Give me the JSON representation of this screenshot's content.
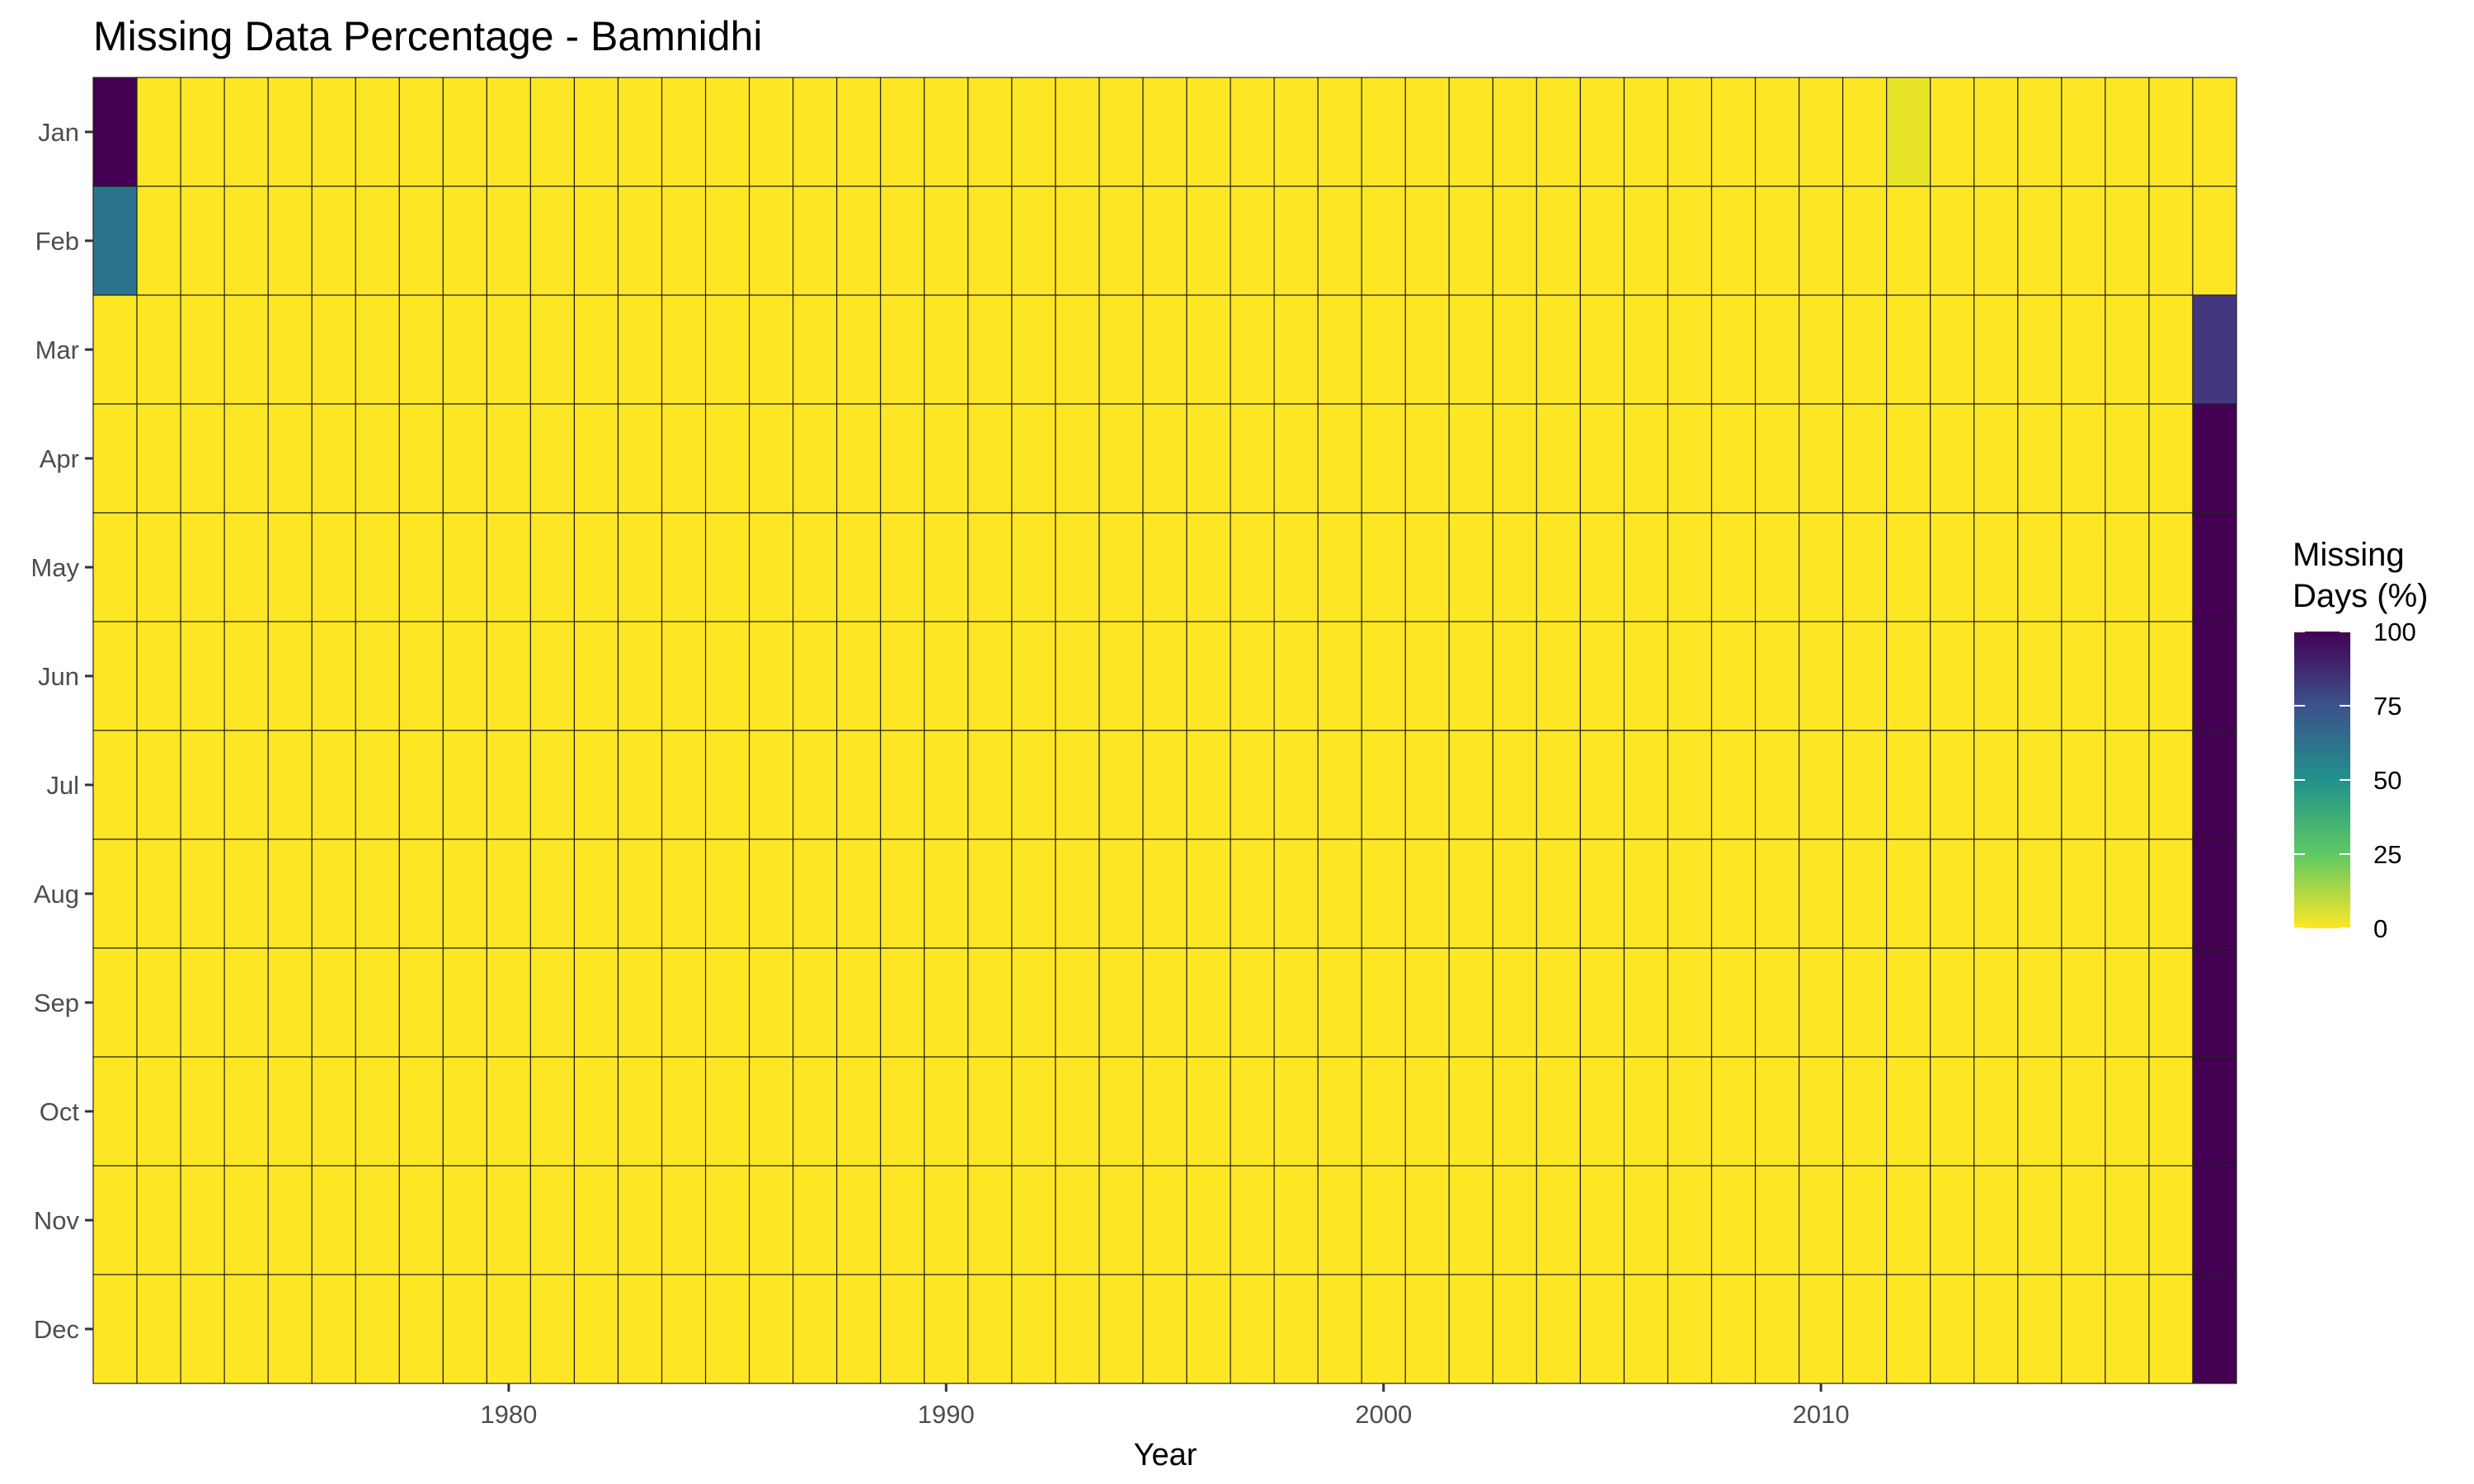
{
  "chart_data": {
    "type": "heatmap",
    "title": "Missing Data Percentage - Bamnidhi",
    "xlabel": "Year",
    "ylabel": "",
    "x_range": [
      1971,
      2019
    ],
    "x_ticks": [
      "1980",
      "1990",
      "2000",
      "2010"
    ],
    "months": [
      "Jan",
      "Feb",
      "Mar",
      "Apr",
      "May",
      "Jun",
      "Jul",
      "Aug",
      "Sep",
      "Oct",
      "Nov",
      "Dec"
    ],
    "default_value": 0,
    "nonzero_cells": [
      {
        "year": 1971,
        "month": "Jan",
        "value": 100
      },
      {
        "year": 1971,
        "month": "Feb",
        "value": 64
      },
      {
        "year": 2012,
        "month": "Jan",
        "value": 3
      },
      {
        "year": 2019,
        "month": "Mar",
        "value": 84
      },
      {
        "year": 2019,
        "month": "Apr",
        "value": 100
      },
      {
        "year": 2019,
        "month": "May",
        "value": 100
      },
      {
        "year": 2019,
        "month": "Jun",
        "value": 100
      },
      {
        "year": 2019,
        "month": "Jul",
        "value": 100
      },
      {
        "year": 2019,
        "month": "Aug",
        "value": 100
      },
      {
        "year": 2019,
        "month": "Sep",
        "value": 100
      },
      {
        "year": 2019,
        "month": "Oct",
        "value": 100
      },
      {
        "year": 2019,
        "month": "Nov",
        "value": 100
      },
      {
        "year": 2019,
        "month": "Dec",
        "value": 100
      }
    ],
    "legend": {
      "title_lines": [
        "Missing",
        "Days (%)"
      ],
      "ticks": [
        "100",
        "75",
        "50",
        "25",
        "0"
      ],
      "range": [
        0,
        100
      ],
      "position": "right"
    },
    "colorscale": "viridis",
    "grid": false
  }
}
